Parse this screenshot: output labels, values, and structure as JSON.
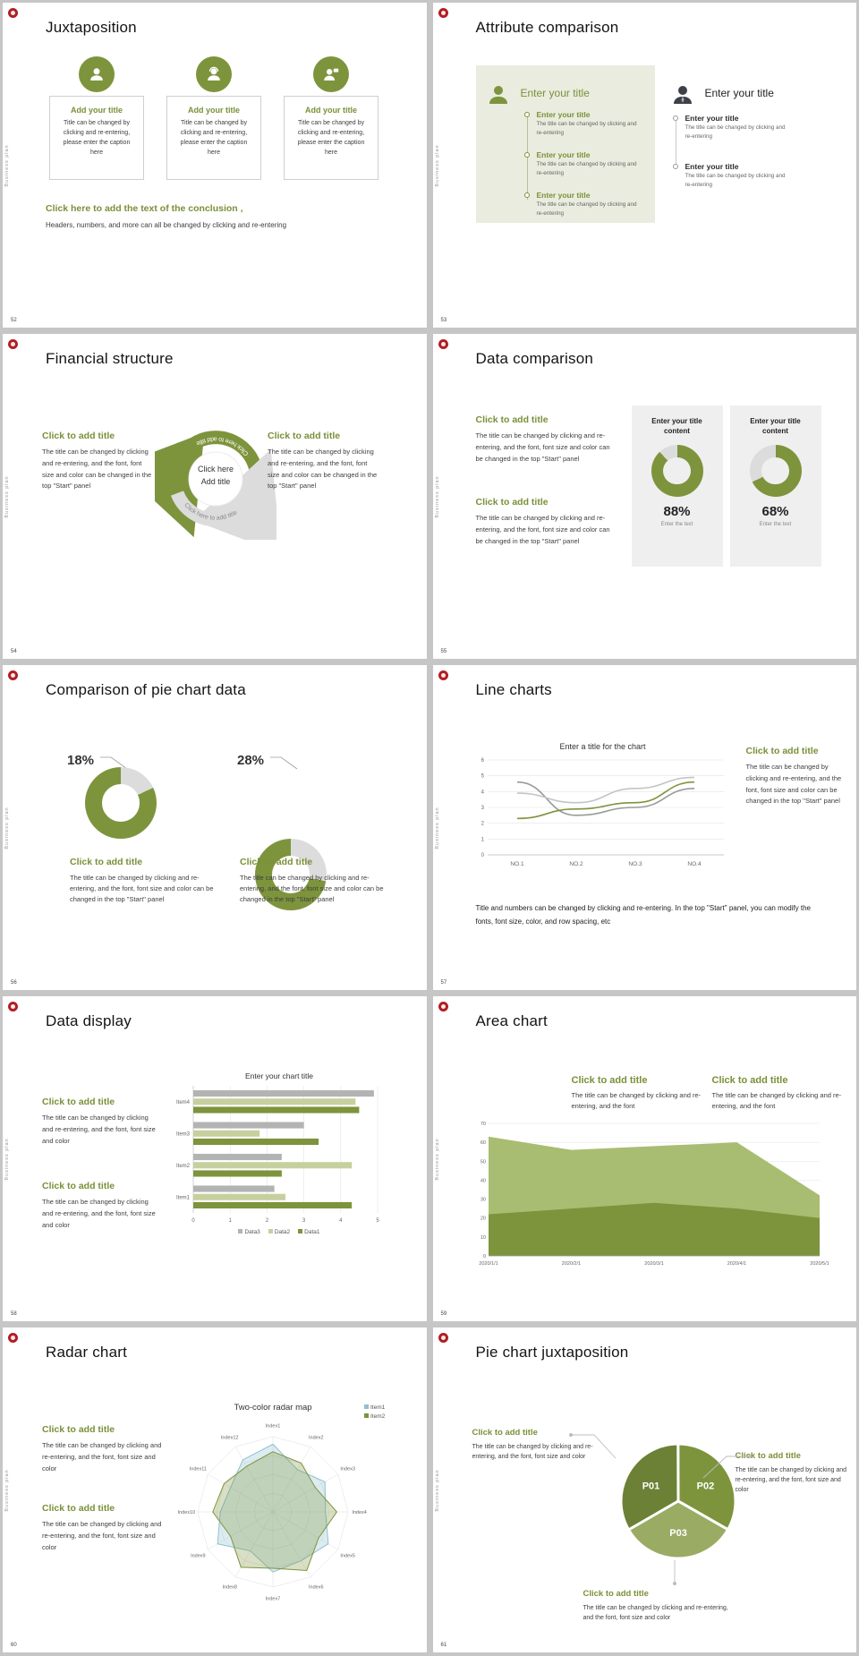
{
  "colors": {
    "accent": "#7d943d",
    "accent_text": "#7a9038",
    "accent_light": "#c6d09f",
    "donut_track": "#dcdcdc",
    "panel_bg": "#efefef",
    "olive_panel_bg": "#eaecdf",
    "dark_icon": "#3b4049",
    "logo_red": "#b11e23"
  },
  "common": {
    "sidebar_text": "Business plan"
  },
  "slides": [
    {
      "number": "52",
      "title": "Juxtaposition",
      "cards": [
        {
          "icon": "person",
          "title": "Add your title",
          "body": "Title can be changed by clicking and re-entering, please enter the caption here"
        },
        {
          "icon": "person-headset",
          "title": "Add your title",
          "body": "Title can be changed by clicking and re-entering, please enter the caption here"
        },
        {
          "icon": "person-chat",
          "title": "Add your title",
          "body": "Title can be changed by clicking and re-entering, please enter the caption here"
        }
      ],
      "conclusion_title": "Click here to add the text of the conclusion ,",
      "conclusion_body": "Headers, numbers, and more can all be changed by clicking and re-entering"
    },
    {
      "number": "53",
      "title": "Attribute comparison",
      "left": {
        "heading": "Enter your title",
        "items": [
          {
            "title": "Enter your title",
            "body": "The title can be changed by clicking and re-entering"
          },
          {
            "title": "Enter your title",
            "body": "The title can be changed by clicking and re-entering"
          },
          {
            "title": "Enter your title",
            "body": "The title can be changed by clicking and re-entering"
          }
        ]
      },
      "right": {
        "heading": "Enter your title",
        "items": [
          {
            "title": "Enter your title",
            "body": "The title can be changed by clicking and re-entering"
          },
          {
            "title": "Enter your title",
            "body": "The title can be changed by clicking and re-entering"
          }
        ]
      }
    },
    {
      "number": "54",
      "title": "Financial structure",
      "left": {
        "heading": "Click to add title",
        "body": "The title can be changed by clicking and re-entering, and the font, font size and color can be changed in the top \"Start\" panel"
      },
      "right": {
        "heading": "Click to add title",
        "body": "The title can be changed by clicking and re-entering, and the font, font size and color can be changed in the top \"Start\" panel"
      },
      "center": {
        "line1": "Click here",
        "line2": "Add title",
        "arc_text": "Click here to add title"
      }
    },
    {
      "number": "55",
      "title": "Data comparison",
      "sections": [
        {
          "heading": "Click to add title",
          "body": "The title can be changed by clicking and re-entering, and the font, font size and color can be changed in the top \"Start\" panel"
        },
        {
          "heading": "Click to add title",
          "body": "The title can be changed by clicking and re-entering, and the font, font size and color can be changed in the top \"Start\" panel"
        }
      ],
      "gauges": [
        {
          "label": "Enter your title content",
          "percent": 88,
          "percent_label": "88%",
          "caption": "Enter the text"
        },
        {
          "label": "Enter your title content",
          "percent": 68,
          "percent_label": "68%",
          "caption": "Enter the text"
        }
      ]
    },
    {
      "number": "56",
      "title": "Comparison of pie chart data",
      "donuts": [
        {
          "percent": 18,
          "percent_label": "18%",
          "heading": "Click to add title",
          "body": "The title can be changed by clicking and re-entering, and the font, font size and color can be changed in the top \"Start\" panel"
        },
        {
          "percent": 28,
          "percent_label": "28%",
          "heading": "Click to add title",
          "body": "The title can be changed by clicking and re-entering, and the font, font size and color can be changed in the top \"Start\" panel"
        }
      ]
    },
    {
      "number": "57",
      "title": "Line charts",
      "chart": {
        "type": "line",
        "title": "Enter a title for the chart",
        "x_labels": [
          "NO.1",
          "NO.2",
          "NO.3",
          "NO.4"
        ],
        "y_ticks": [
          0,
          1,
          2,
          3,
          4,
          5,
          6
        ],
        "series": [
          {
            "name": "series-dark-gray",
            "color": "#9a9a9a",
            "values": [
              4.6,
              2.5,
              3.0,
              4.2
            ]
          },
          {
            "name": "series-green",
            "color": "#7d943d",
            "values": [
              2.3,
              2.9,
              3.3,
              4.6
            ]
          },
          {
            "name": "series-light-gray",
            "color": "#c4c4c4",
            "values": [
              3.9,
              3.3,
              4.2,
              4.9
            ]
          }
        ]
      },
      "side": {
        "heading": "Click to add title",
        "body": "The title can be changed by clicking and re-entering, and the font, font size and color can be changed in the top \"Start\" panel"
      },
      "footer": "Title and numbers can be changed by clicking and re-entering. In the top \"Start\" panel, you can modify the fonts, font size, color, and row spacing, etc"
    },
    {
      "number": "58",
      "title": "Data display",
      "sections": [
        {
          "heading": "Click to add title",
          "body": "The title can be changed by clicking and re-entering, and the font, font size and color"
        },
        {
          "heading": "Click to add title",
          "body": "The title can be changed by clicking and re-entering, and the font, font size and color"
        }
      ],
      "chart": {
        "type": "bar",
        "title": "Enter your chart title",
        "categories": [
          "Item1",
          "Item2",
          "Item3",
          "Item4"
        ],
        "x_ticks": [
          0,
          1,
          2,
          3,
          4,
          5
        ],
        "series": [
          {
            "name": "Data3",
            "color": "#b3b3b3",
            "values": [
              2.2,
              2.4,
              3.0,
              4.9
            ]
          },
          {
            "name": "Data2",
            "color": "#c6d09f",
            "values": [
              2.5,
              4.3,
              1.8,
              4.4
            ]
          },
          {
            "name": "Data1",
            "color": "#7d943d",
            "values": [
              4.3,
              2.4,
              3.4,
              4.5
            ]
          }
        ],
        "legend": [
          {
            "label": "Data3",
            "color": "#b3b3b3"
          },
          {
            "label": "Data2",
            "color": "#c6d09f"
          },
          {
            "label": "Data1",
            "color": "#7d943d"
          }
        ]
      }
    },
    {
      "number": "59",
      "title": "Area chart",
      "sections": [
        {
          "heading": "Click to add title",
          "body": "The title can be changed by clicking and re-entering, and the font"
        },
        {
          "heading": "Click to add title",
          "body": "The title can be changed by clicking and re-entering, and the font"
        }
      ],
      "chart": {
        "type": "area",
        "x_labels": [
          "2020/1/1",
          "2020/2/1",
          "2020/3/1",
          "2020/4/1",
          "2020/5/1"
        ],
        "y_ticks": [
          0,
          10,
          20,
          30,
          40,
          50,
          60,
          70
        ],
        "series": [
          {
            "name": "upper-area",
            "color": "#a9bd72",
            "values": [
              63,
              56,
              58,
              60,
              32
            ]
          },
          {
            "name": "lower-area",
            "color": "#7d943d",
            "values": [
              22,
              25,
              28,
              25,
              20
            ]
          }
        ]
      }
    },
    {
      "number": "60",
      "title": "Radar chart",
      "sections": [
        {
          "heading": "Click to add title",
          "body": "The title can be changed by clicking and re-entering, and the font, font size and color"
        },
        {
          "heading": "Click to add title",
          "body": "The title can be changed by clicking and re-entering, and the font, font size and color"
        }
      ],
      "chart": {
        "type": "radar",
        "title": "Two-color radar map",
        "max": 10,
        "axes": [
          "Index1",
          "Index2",
          "Index3",
          "Index4",
          "Index5",
          "Index6",
          "Index7",
          "Index8",
          "Index9",
          "Index10",
          "Index11",
          "Index12"
        ],
        "series": [
          {
            "name": "Item1",
            "color": "#8fc0d2",
            "values": [
              9,
              6.5,
              8,
              7,
              8.5,
              7.5,
              8,
              6,
              8.5,
              7,
              6.5,
              8
            ]
          },
          {
            "name": "Item2",
            "color": "#7d943d",
            "values": [
              8,
              7.5,
              6.5,
              8.5,
              7,
              9,
              7.5,
              8.5,
              6.5,
              8,
              7.5,
              7
            ]
          }
        ],
        "legend": [
          {
            "label": "Item1",
            "color": "#8fc0d2"
          },
          {
            "label": "Item2",
            "color": "#7d943d"
          }
        ]
      }
    },
    {
      "number": "61",
      "title": "Pie chart juxtaposition",
      "chart": {
        "type": "pie",
        "start_angle": 240,
        "segments": [
          {
            "label": "P01",
            "value": 33.3,
            "color": "#6d8136"
          },
          {
            "label": "P02",
            "value": 33.3,
            "color": "#7d943d"
          },
          {
            "label": "P03",
            "value": 33.4,
            "color": "#9aab63"
          }
        ]
      },
      "callouts": [
        {
          "heading": "Click to add title",
          "body": "The title can be changed by clicking and re-entering, and the font, font size and color"
        },
        {
          "heading": "Click to add title",
          "body": "The title can be changed by clicking and re-entering, and the font, font size and color"
        },
        {
          "heading": "Click to add title",
          "body": "The title can be changed by clicking and re-entering, and the font, font size and color"
        }
      ]
    }
  ]
}
